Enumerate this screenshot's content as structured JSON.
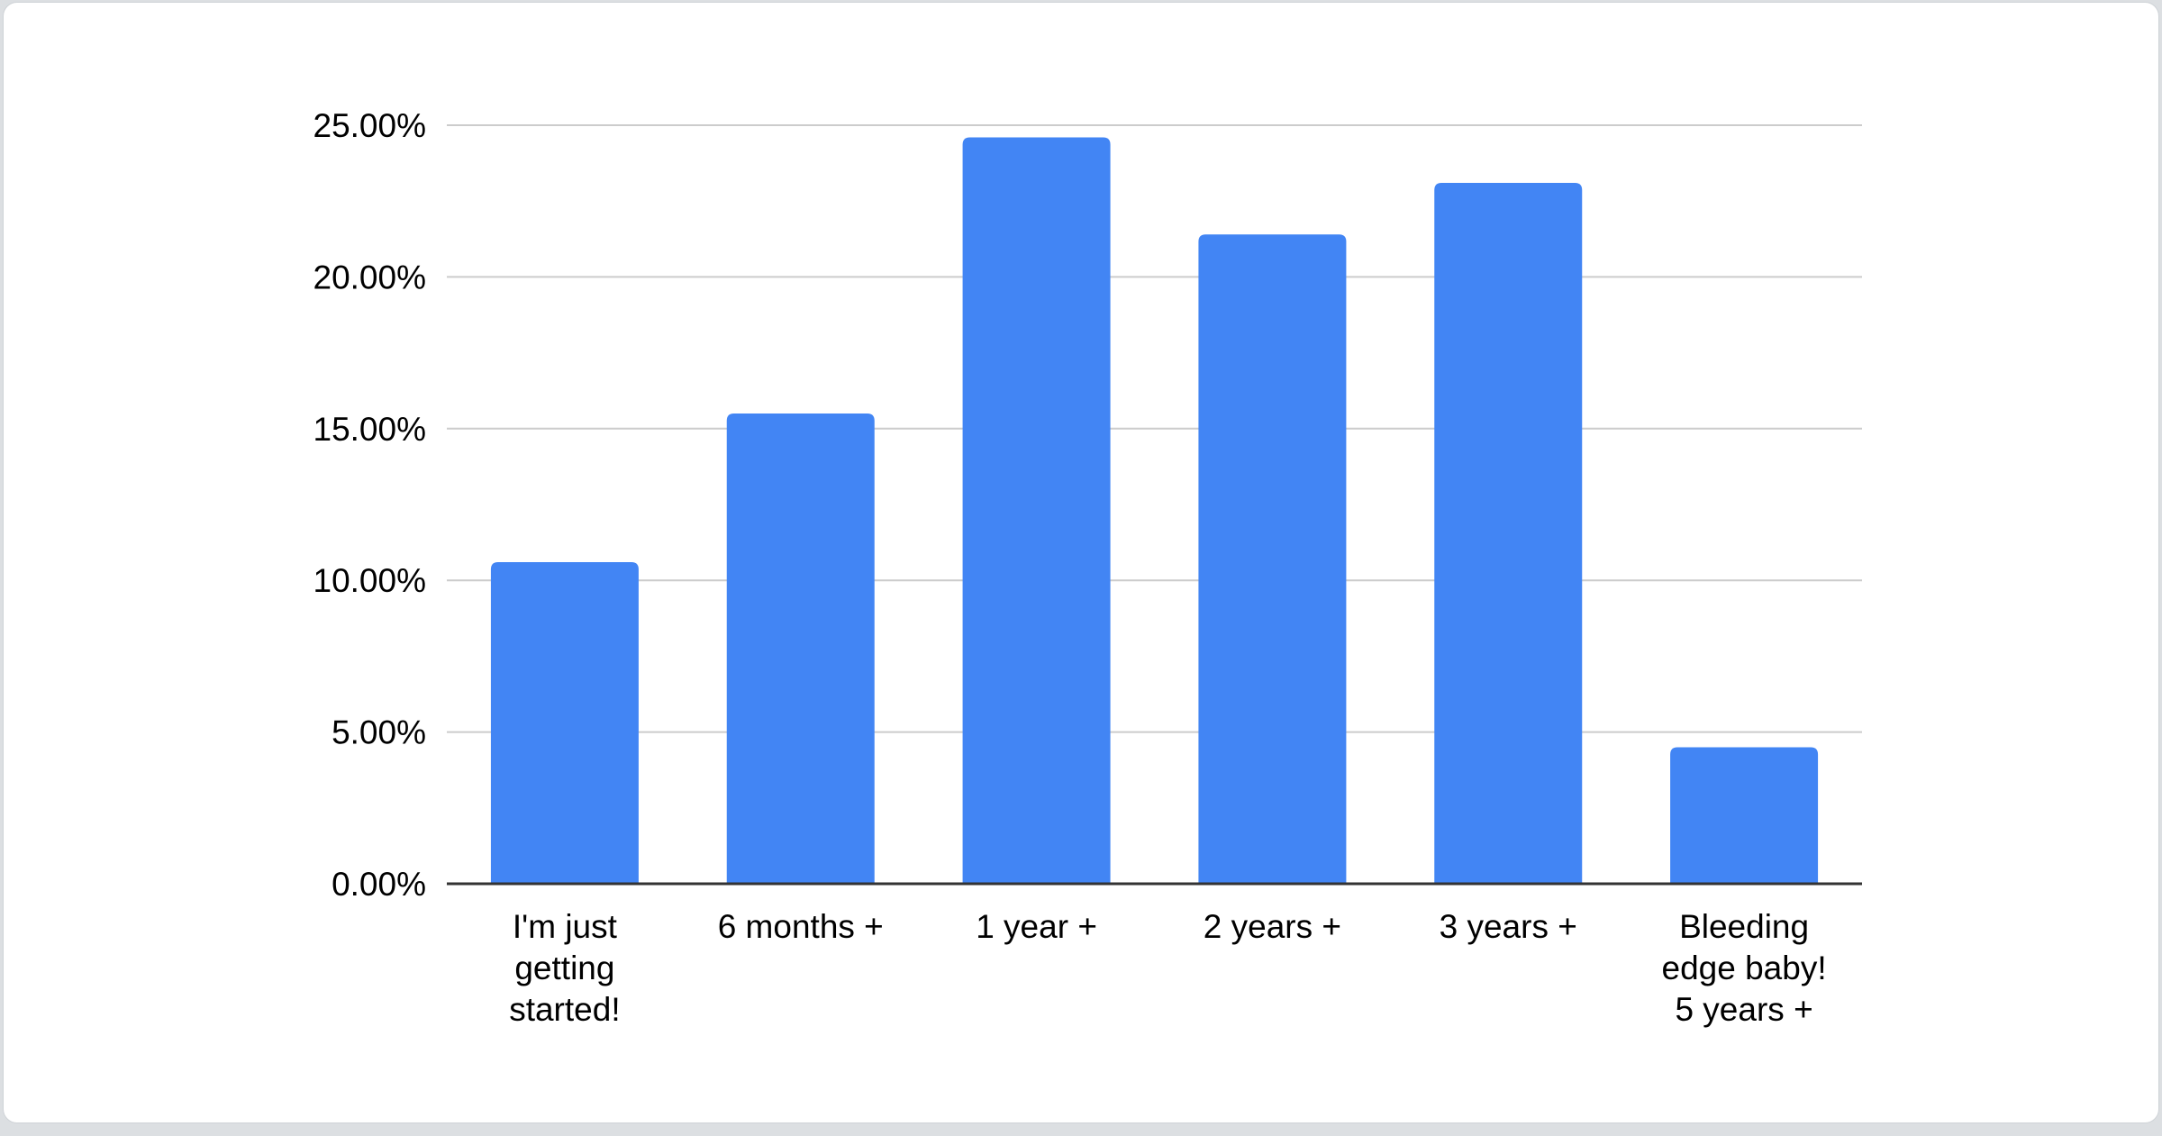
{
  "page": {
    "background_color": "#dcdfe2",
    "card_background": "#ffffff",
    "card_border_color": "#cfd3d7"
  },
  "chart_data": {
    "type": "bar",
    "title": "",
    "xlabel": "",
    "ylabel": "",
    "legend": "none",
    "grid": true,
    "categories": [
      "I'm just getting started!",
      "6 months +",
      "1 year +",
      "2 years +",
      "3 years +",
      "Bleeding edge baby! 5 years +"
    ],
    "category_lines": [
      [
        "I'm just",
        "getting",
        "started!"
      ],
      [
        "6 months +"
      ],
      [
        "1 year +"
      ],
      [
        "2 years +"
      ],
      [
        "3 years +"
      ],
      [
        "Bleeding",
        "edge baby!",
        "5 years +"
      ]
    ],
    "values": [
      10.6,
      15.5,
      24.6,
      21.4,
      23.1,
      4.5
    ],
    "value_unit": "%",
    "ylim": [
      0,
      25
    ],
    "y_ticks": [
      {
        "value": 0,
        "label": "0.00%"
      },
      {
        "value": 5,
        "label": "5.00%"
      },
      {
        "value": 10,
        "label": "10.00%"
      },
      {
        "value": 15,
        "label": "15.00%"
      },
      {
        "value": 20,
        "label": "20.00%"
      },
      {
        "value": 25,
        "label": "25.00%"
      }
    ],
    "bar_color": "#4285f4",
    "gridline_color": "#cccccc",
    "axis_line_color": "#333333",
    "label_color": "#000000"
  }
}
